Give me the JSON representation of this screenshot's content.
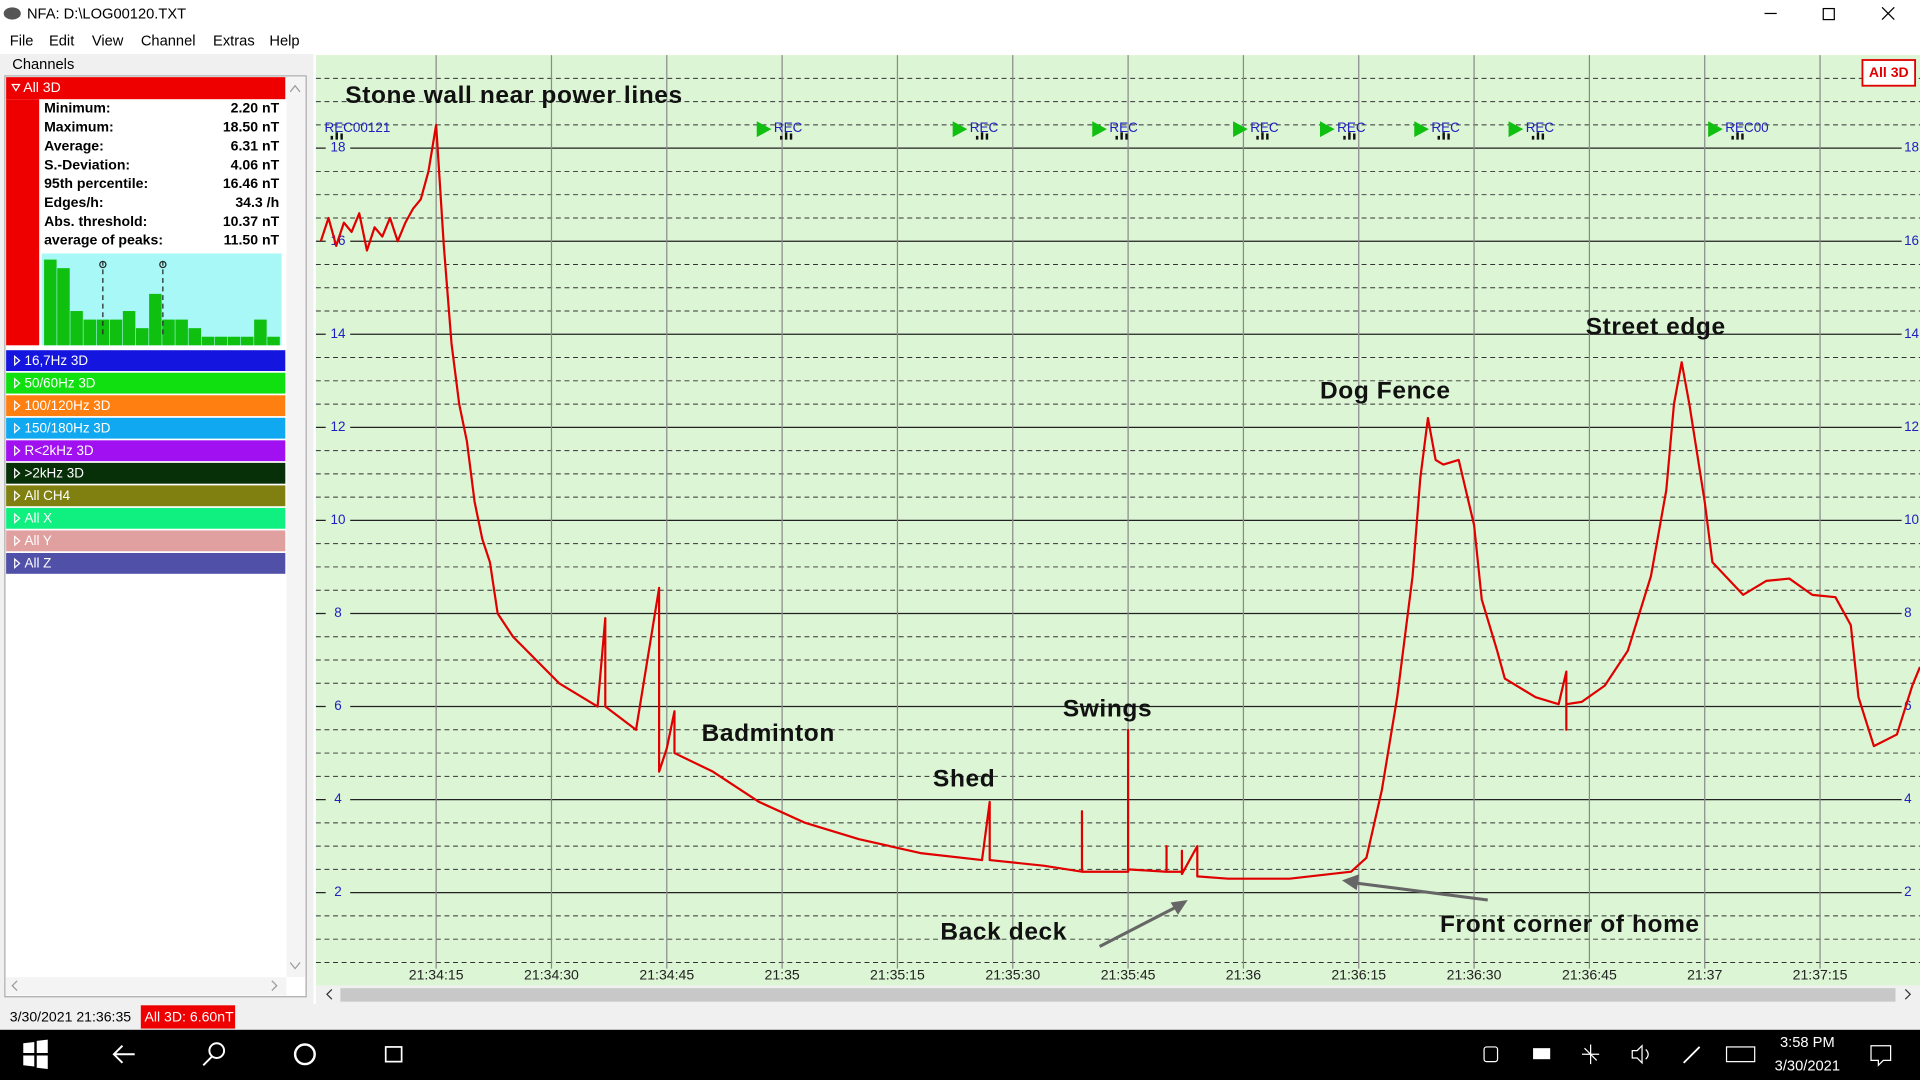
{
  "window": {
    "title": "NFA: D:\\LOG00120.TXT"
  },
  "menu": [
    "File",
    "Edit",
    "View",
    "Channel",
    "Extras",
    "Help"
  ],
  "channels_panel": {
    "title": "Channels",
    "active": {
      "name": "All 3D",
      "color": "#ee0000",
      "stats": [
        [
          "Minimum:",
          "2.20 nT"
        ],
        [
          "Maximum:",
          "18.50 nT"
        ],
        [
          "Average:",
          "6.31 nT"
        ],
        [
          "S.-Deviation:",
          "4.06 nT"
        ],
        [
          "95th percentile:",
          "16.46 nT"
        ],
        [
          "Edges/h:",
          "34.3 /h"
        ],
        [
          "Abs. threshold:",
          "10.37 nT"
        ],
        [
          "average of peaks:",
          "11.50 nT"
        ]
      ],
      "histogram": [
        10,
        9,
        4,
        3,
        3,
        3,
        4,
        2,
        6,
        3,
        3,
        2,
        1,
        1,
        1,
        1,
        3,
        1
      ]
    },
    "channels": [
      {
        "name": "16,7Hz 3D",
        "color": "#1515e0"
      },
      {
        "name": "50/60Hz 3D",
        "color": "#10e010"
      },
      {
        "name": "100/120Hz 3D",
        "color": "#ff8010"
      },
      {
        "name": "150/180Hz 3D",
        "color": "#10a8f0"
      },
      {
        "name": "R<2kHz 3D",
        "color": "#a010f0"
      },
      {
        "name": ">2kHz 3D",
        "color": "#083008"
      },
      {
        "name": "All CH4",
        "color": "#808010"
      },
      {
        "name": "All X",
        "color": "#10f080"
      },
      {
        "name": "All Y",
        "color": "#e0a0a0"
      },
      {
        "name": "All Z",
        "color": "#5050a8"
      }
    ]
  },
  "status_bar": [
    "3/30/2021 21:36:35",
    "All 3D: 6.60nT"
  ],
  "taskbar": {
    "time": "3:58 PM",
    "date": "3/30/2021"
  },
  "chart_data": {
    "type": "line",
    "record_markers": [
      "REC00121",
      "REC",
      "REC",
      "REC",
      "REC",
      "REC",
      "REC",
      "REC",
      "REC00"
    ],
    "annotations": [
      "Stone wall near power lines",
      "Badminton",
      "Shed",
      "Swings",
      "Back deck",
      "Front corner of home",
      "Dog Fence",
      "Street edge"
    ],
    "x": [
      "21:34:00",
      "21:34:01",
      "21:34:02",
      "21:34:03",
      "21:34:04",
      "21:34:05",
      "21:34:06",
      "21:34:07",
      "21:34:08",
      "21:34:09",
      "21:34:10",
      "21:34:11",
      "21:34:12",
      "21:34:13",
      "21:34:14",
      "21:34:15",
      "21:34:16",
      "21:34:17",
      "21:34:18",
      "21:34:19",
      "21:34:20",
      "21:34:21",
      "21:34:22",
      "21:34:23",
      "21:34:25",
      "21:34:28",
      "21:34:31",
      "21:34:36",
      "21:34:37",
      "21:34:37",
      "21:34:41",
      "21:34:44",
      "21:34:44",
      "21:34:45",
      "21:34:46",
      "21:34:46",
      "21:34:51",
      "21:34:57",
      "21:35:03",
      "21:35:10",
      "21:35:18",
      "21:35:26",
      "21:35:27",
      "21:35:27",
      "21:35:34",
      "21:35:39",
      "21:35:39",
      "21:35:39",
      "21:35:45",
      "21:35:45",
      "21:35:45",
      "21:35:50",
      "21:35:50",
      "21:35:50",
      "21:35:52",
      "21:35:52",
      "21:35:52",
      "21:35:54",
      "21:35:54",
      "21:35:58",
      "21:36:06",
      "21:36:14",
      "21:36:16",
      "21:36:18",
      "21:36:20",
      "21:36:22",
      "21:36:23",
      "21:36:24",
      "21:36:25",
      "21:36:26",
      "21:36:28",
      "21:36:30",
      "21:36:31",
      "21:36:33",
      "21:36:34",
      "21:36:38",
      "21:36:41",
      "21:36:42",
      "21:36:42",
      "21:36:42",
      "21:36:44",
      "21:36:47",
      "21:36:50",
      "21:36:53",
      "21:36:55",
      "21:36:56",
      "21:36:57",
      "21:36:58",
      "21:37:00",
      "21:37:01",
      "21:37:05",
      "21:37:08",
      "21:37:11",
      "21:37:14",
      "21:37:17",
      "21:37:19",
      "21:37:20",
      "21:37:22",
      "21:37:25",
      "21:37:27",
      "21:37:28"
    ],
    "series": [
      {
        "name": "All 3D",
        "color": "#e00000",
        "values": [
          16.0,
          16.5,
          15.9,
          16.4,
          16.2,
          16.6,
          15.8,
          16.3,
          16.1,
          16.5,
          16.0,
          16.4,
          16.7,
          16.9,
          17.5,
          18.5,
          15.9,
          13.8,
          12.5,
          11.7,
          10.4,
          9.6,
          9.1,
          8.0,
          7.5,
          7.0,
          6.5,
          6.0,
          7.9,
          6.0,
          5.5,
          8.55,
          4.6,
          5.1,
          5.9,
          5.0,
          4.6,
          3.95,
          3.5,
          3.15,
          2.85,
          2.7,
          3.95,
          2.7,
          2.58,
          2.45,
          3.75,
          2.45,
          2.45,
          5.5,
          2.5,
          2.45,
          3.0,
          2.45,
          2.45,
          2.9,
          2.4,
          3.0,
          2.35,
          2.3,
          2.3,
          2.45,
          2.75,
          4.2,
          6.2,
          8.8,
          10.9,
          12.2,
          11.3,
          11.2,
          11.3,
          9.9,
          8.3,
          7.2,
          6.6,
          6.2,
          6.05,
          6.75,
          5.5,
          6.05,
          6.1,
          6.45,
          7.2,
          8.8,
          10.65,
          12.5,
          13.4,
          12.5,
          10.4,
          9.1,
          8.4,
          8.7,
          8.75,
          8.4,
          8.35,
          7.75,
          6.2,
          5.15,
          5.4,
          6.45,
          6.85
        ]
      }
    ],
    "xlim": [
      "21:34:00",
      "21:37:28"
    ],
    "xticks": [
      "21:34:15",
      "21:34:30",
      "21:34:45",
      {
        "value": "21:35:00",
        "label": "21:35"
      },
      "21:35:15",
      "21:35:30",
      "21:35:45",
      {
        "value": "21:36:00",
        "label": "21:36"
      },
      "21:36:15",
      "21:36:30",
      "21:36:45",
      {
        "value": "21:37:00",
        "label": "21:37"
      },
      "21:37:15"
    ],
    "ylim": [
      0,
      20
    ],
    "yticks": [
      2,
      4,
      6,
      8,
      10,
      12,
      14,
      16,
      18
    ],
    "grid": true
  }
}
